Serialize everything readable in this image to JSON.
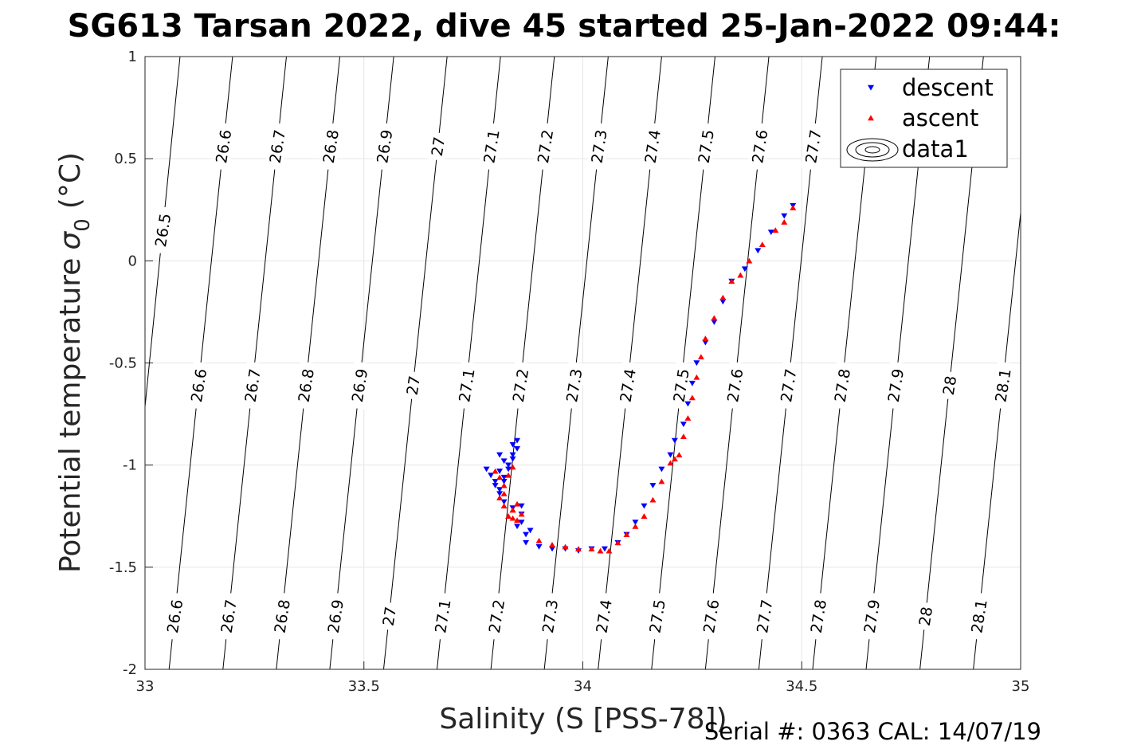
{
  "title": "SG613 Tarsan 2022, dive 45 started 25-Jan-2022 09:44:",
  "xlabel": "Salinity (S [PSS-78])",
  "ylabel_main": "Potential temperature",
  "ylabel_sigma": "σ",
  "ylabel_sub": "0",
  "ylabel_unit": "(°C)",
  "serial": "Serial #: 0363  CAL: 14/07/19",
  "legend": {
    "descent": "descent",
    "ascent": "ascent",
    "data1": "data1"
  },
  "colors": {
    "descent": "#0000ff",
    "ascent": "#ff0000",
    "grid": "#e6e6e6",
    "contour": "#000000",
    "axis": "#262626"
  },
  "chart_data": {
    "type": "scatter",
    "xlim": [
      33,
      35
    ],
    "ylim": [
      -2,
      1
    ],
    "x_ticks": [
      "33",
      "33.5",
      "34",
      "34.5",
      "35"
    ],
    "x_tick_values": [
      33,
      33.5,
      34,
      34.5,
      35
    ],
    "y_ticks": [
      "1",
      "0.5",
      "0",
      "-0.5",
      "-1",
      "-1.5",
      "-2"
    ],
    "y_tick_values": [
      1,
      0.5,
      0,
      -0.5,
      -1,
      -1.5,
      -2
    ],
    "grid": true,
    "legend_position": "top-right",
    "contours": {
      "levels": [
        26.5,
        26.6,
        26.7,
        26.8,
        26.9,
        27.0,
        27.1,
        27.2,
        27.3,
        27.4,
        27.5,
        27.6,
        27.7,
        27.8,
        27.9,
        28.0,
        28.1
      ],
      "labels": [
        "26.5",
        "26.6",
        "26.7",
        "26.8",
        "26.9",
        "27",
        "27.1",
        "27.2",
        "27.3",
        "27.4",
        "27.5",
        "27.6",
        "27.7",
        "27.8",
        "27.9",
        "28",
        "28.1"
      ],
      "salinity_at_bottom": [
        32.94,
        33.055,
        33.178,
        33.3,
        33.422,
        33.545,
        33.667,
        33.79,
        33.912,
        34.035,
        34.157,
        34.28,
        34.402,
        34.525,
        34.647,
        34.77,
        34.892
      ],
      "salinity_at_top": [
        33.08,
        33.2,
        33.323,
        33.445,
        33.568,
        33.69,
        33.812,
        33.935,
        34.058,
        34.18,
        34.302,
        34.425,
        34.547,
        34.67,
        34.792,
        34.915,
        35.037
      ],
      "top_labels": [
        "26.6",
        "26.7",
        "26.8",
        "26.9",
        "27",
        "27.1",
        "27.2",
        "27.3",
        "27.4",
        "27.5",
        "27.6",
        "27.7"
      ],
      "middle_labels": [
        "26.6",
        "26.7",
        "26.8",
        "26.9",
        "27",
        "27.1",
        "27.2",
        "27.3",
        "27.4",
        "27.5",
        "27.6",
        "27.7",
        "27.8",
        "27.9",
        "28",
        "28.1"
      ],
      "bottom_labels": [
        "26.6",
        "26.7",
        "26.8",
        "26.9",
        "27",
        "27.1",
        "27.2",
        "27.3",
        "27.4",
        "27.5",
        "27.6",
        "27.7",
        "27.8",
        "27.9",
        "28",
        "28.1"
      ],
      "left_label": "26.5"
    },
    "series": [
      {
        "name": "descent",
        "marker": "triangle-down",
        "x": [
          33.78,
          33.79,
          33.8,
          33.81,
          33.82,
          33.81,
          33.8,
          33.81,
          33.82,
          33.83,
          33.84,
          33.84,
          33.85,
          33.85,
          33.84,
          33.83,
          33.82,
          33.81,
          33.82,
          33.84,
          33.86,
          33.86,
          33.85,
          33.87,
          33.88,
          33.86,
          33.87,
          33.9,
          33.93,
          33.96,
          33.99,
          34.02,
          34.05,
          34.08,
          34.1,
          34.12,
          34.14,
          34.16,
          34.18,
          34.2,
          34.21,
          34.23,
          34.24,
          34.25,
          34.26,
          34.28,
          34.3,
          34.32,
          34.34,
          34.37,
          34.4,
          34.43,
          34.46,
          34.48
        ],
        "y": [
          -1.02,
          -1.05,
          -1.08,
          -1.03,
          -0.98,
          -0.95,
          -1.1,
          -1.14,
          -1.08,
          -1.0,
          -0.95,
          -0.9,
          -0.92,
          -0.88,
          -0.97,
          -1.02,
          -1.06,
          -1.12,
          -1.18,
          -1.21,
          -1.24,
          -1.28,
          -1.3,
          -1.34,
          -1.32,
          -1.2,
          -1.38,
          -1.4,
          -1.41,
          -1.41,
          -1.42,
          -1.41,
          -1.41,
          -1.38,
          -1.34,
          -1.28,
          -1.2,
          -1.1,
          -1.02,
          -0.95,
          -0.88,
          -0.8,
          -0.7,
          -0.6,
          -0.5,
          -0.4,
          -0.3,
          -0.2,
          -0.1,
          -0.04,
          0.05,
          0.14,
          0.22,
          0.27
        ]
      },
      {
        "name": "ascent",
        "marker": "triangle-up",
        "x": [
          33.8,
          33.81,
          33.82,
          33.83,
          33.84,
          33.82,
          33.81,
          33.82,
          33.83,
          33.84,
          33.84,
          33.85,
          33.86,
          33.85,
          33.84,
          33.9,
          33.93,
          33.96,
          33.99,
          34.02,
          34.04,
          34.06,
          34.08,
          34.1,
          34.12,
          34.14,
          34.16,
          34.18,
          34.2,
          34.21,
          34.22,
          34.23,
          34.24,
          34.25,
          34.26,
          34.27,
          34.28,
          34.3,
          34.32,
          34.34,
          34.36,
          34.38,
          34.41,
          34.44,
          34.46,
          34.48
        ],
        "y": [
          -1.03,
          -1.06,
          -1.1,
          -1.05,
          -1.01,
          -1.14,
          -1.16,
          -1.2,
          -1.25,
          -1.26,
          -1.22,
          -1.19,
          -1.24,
          -1.27,
          -1.22,
          -1.37,
          -1.39,
          -1.4,
          -1.41,
          -1.41,
          -1.42,
          -1.42,
          -1.38,
          -1.34,
          -1.3,
          -1.25,
          -1.17,
          -1.08,
          -0.99,
          -0.97,
          -0.95,
          -0.86,
          -0.77,
          -0.67,
          -0.57,
          -0.47,
          -0.38,
          -0.28,
          -0.18,
          -0.1,
          -0.07,
          0.0,
          0.08,
          0.15,
          0.19,
          0.26
        ]
      }
    ]
  }
}
